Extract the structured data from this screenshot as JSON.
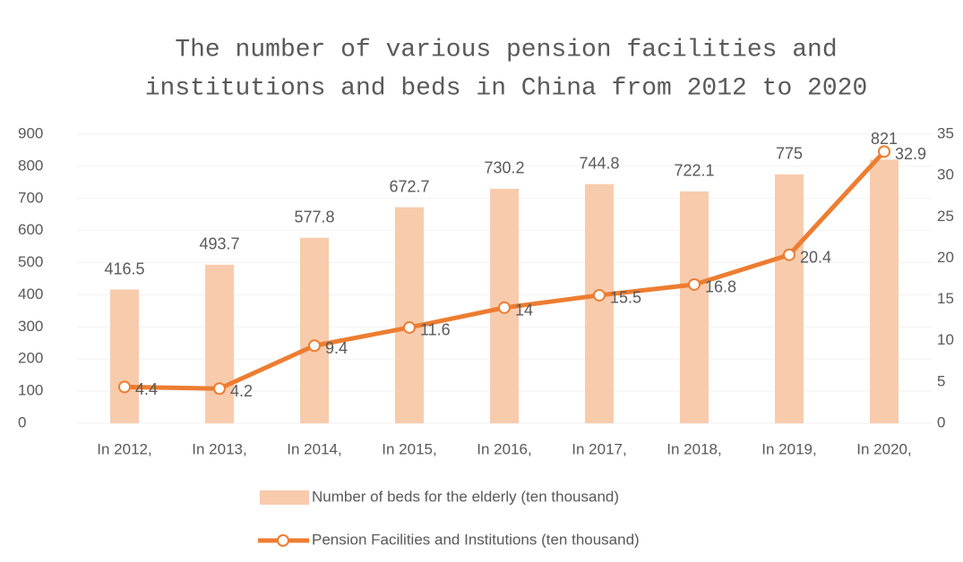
{
  "chart_data": {
    "type": "bar",
    "title": [
      "The number of various pension facilities and",
      "institutions and beds in China from 2012 to 2020"
    ],
    "categories": [
      "In 2012,",
      "In 2013,",
      "In 2014,",
      "In 2015,",
      "In 2016,",
      "In 2017,",
      "In 2018,",
      "In 2019,",
      "In 2020,"
    ],
    "series": [
      {
        "name": "Number of beds for the elderly (ten thousand)",
        "type": "bar",
        "color": "#f8cbad",
        "values": [
          416.5,
          493.7,
          577.8,
          672.7,
          730.2,
          744.8,
          722.1,
          775,
          821
        ]
      },
      {
        "name": "Pension Facilities and Institutions (ten thousand)",
        "type": "line",
        "axis": "y2",
        "color": "#ed7d31",
        "values": [
          4.4,
          4.2,
          9.4,
          11.6,
          14,
          15.5,
          16.8,
          20.4,
          32.9
        ]
      }
    ],
    "ylim": [
      0,
      900
    ],
    "yticks": [
      0,
      100,
      200,
      300,
      400,
      500,
      600,
      700,
      800,
      900
    ],
    "y2lim": [
      0,
      35
    ],
    "y2ticks": [
      0,
      5,
      10,
      15,
      20,
      25,
      30,
      35
    ],
    "grid": true,
    "legend": "bottom"
  }
}
